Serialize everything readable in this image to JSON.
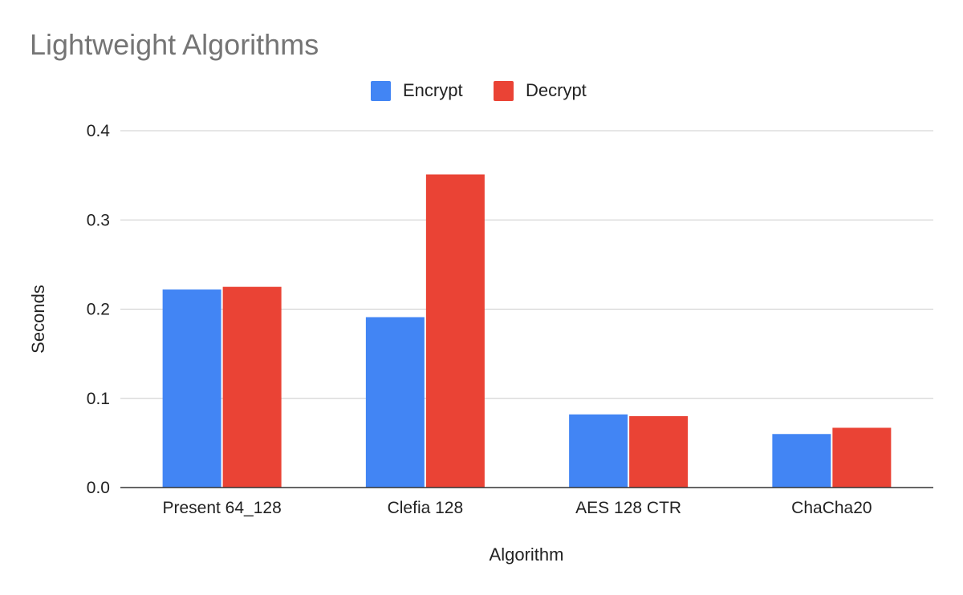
{
  "chart_data": {
    "type": "bar",
    "title": "Lightweight Algorithms",
    "xlabel": "Algorithm",
    "ylabel": "Seconds",
    "categories": [
      "Present 64_128",
      "Clefia 128",
      "AES 128 CTR",
      "ChaCha20"
    ],
    "series": [
      {
        "name": "Encrypt",
        "color": "#4285f4",
        "values": [
          0.222,
          0.191,
          0.082,
          0.06
        ]
      },
      {
        "name": "Decrypt",
        "color": "#ea4335",
        "values": [
          0.225,
          0.351,
          0.08,
          0.067
        ]
      }
    ],
    "ylim": [
      0,
      0.4
    ],
    "yticks": [
      "0.0",
      "0.1",
      "0.2",
      "0.3",
      "0.4"
    ],
    "grid": true,
    "legend_position": "top-center"
  }
}
